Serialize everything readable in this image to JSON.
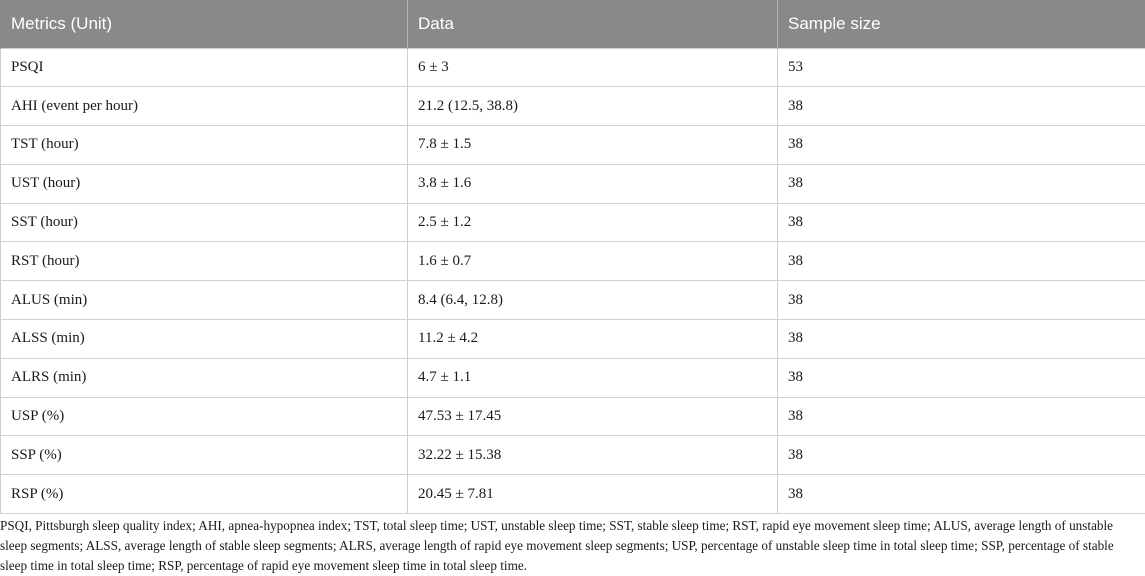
{
  "table": {
    "headers": [
      "Metrics (Unit)",
      "Data",
      "Sample size"
    ],
    "rows": [
      [
        "PSQI",
        "6 ± 3",
        "53"
      ],
      [
        "AHI (event per hour)",
        "21.2 (12.5, 38.8)",
        "38"
      ],
      [
        "TST (hour)",
        "7.8 ± 1.5",
        "38"
      ],
      [
        "UST (hour)",
        "3.8 ± 1.6",
        "38"
      ],
      [
        "SST (hour)",
        "2.5 ± 1.2",
        "38"
      ],
      [
        "RST (hour)",
        "1.6 ± 0.7",
        "38"
      ],
      [
        "ALUS (min)",
        "8.4 (6.4, 12.8)",
        "38"
      ],
      [
        "ALSS (min)",
        "11.2 ± 4.2",
        "38"
      ],
      [
        "ALRS (min)",
        "4.7 ± 1.1",
        "38"
      ],
      [
        "USP (%)",
        "47.53 ± 17.45",
        "38"
      ],
      [
        "SSP (%)",
        "32.22 ± 15.38",
        "38"
      ],
      [
        "RSP (%)",
        "20.45 ± 7.81",
        "38"
      ]
    ]
  },
  "footnote": "PSQI, Pittsburgh sleep quality index; AHI, apnea-hypopnea index; TST, total sleep time; UST, unstable sleep time; SST, stable sleep time; RST, rapid eye movement sleep time; ALUS, average length of unstable sleep segments; ALSS, average length of stable sleep segments; ALRS, average length of rapid eye movement sleep segments; USP, percentage of unstable sleep time in total sleep time; SSP, percentage of stable sleep time in total sleep time; RSP, percentage of rapid eye movement sleep time in total sleep time."
}
